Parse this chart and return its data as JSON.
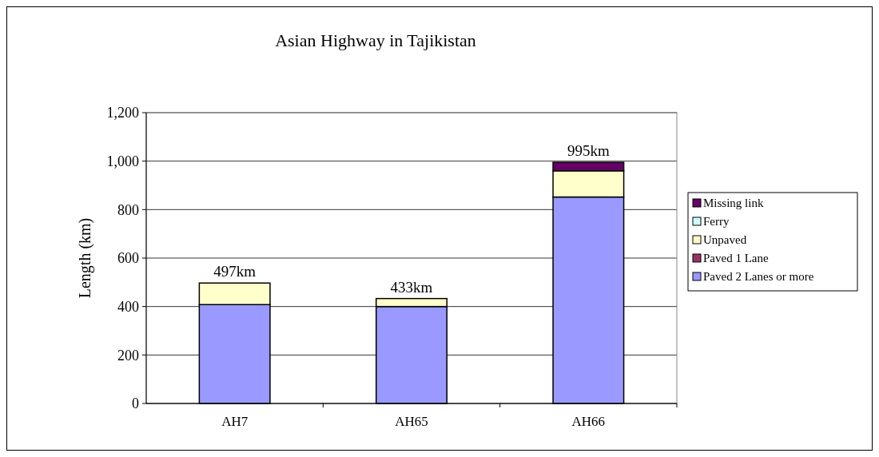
{
  "chart_data": {
    "type": "bar",
    "title": "Asian Highway in Tajikistan",
    "ylabel": "Length (km)",
    "categories": [
      "AH7",
      "AH65",
      "AH66"
    ],
    "stacked": true,
    "series": [
      {
        "name": "Paved 2 Lanes or more",
        "color": "#9999ff",
        "values": [
          408,
          400,
          852
        ]
      },
      {
        "name": "Paved 1 Lane",
        "color": "#993366",
        "values": [
          0,
          0,
          0
        ]
      },
      {
        "name": "Unpaved",
        "color": "#ffffcc",
        "values": [
          89,
          33,
          108
        ]
      },
      {
        "name": "Ferry",
        "color": "#ccffff",
        "values": [
          0,
          0,
          0
        ]
      },
      {
        "name": "Missing link",
        "color": "#660066",
        "values": [
          0,
          0,
          35
        ]
      }
    ],
    "totals": [
      "497km",
      "433km",
      "995km"
    ],
    "ylim": [
      0,
      1200
    ],
    "yticks": [
      {
        "value": 0,
        "label": "0"
      },
      {
        "value": 200,
        "label": "200"
      },
      {
        "value": 400,
        "label": "400"
      },
      {
        "value": 600,
        "label": "600"
      },
      {
        "value": 800,
        "label": "800"
      },
      {
        "value": 1000,
        "label": "1,000"
      },
      {
        "value": 1200,
        "label": "1,200"
      }
    ],
    "grid": "y",
    "legend": "right"
  }
}
